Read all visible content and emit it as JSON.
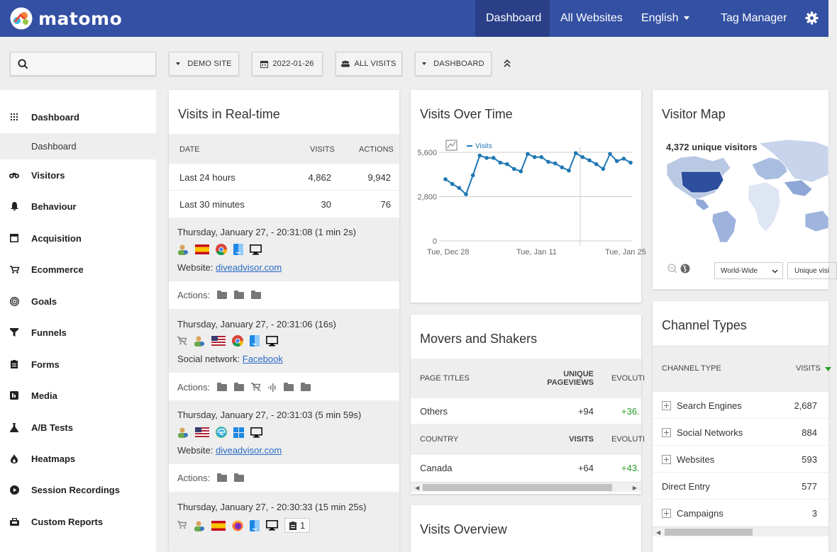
{
  "header": {
    "logo_text": "matomo",
    "nav": [
      {
        "label": "Dashboard"
      },
      {
        "label": "All Websites"
      },
      {
        "label": "English"
      },
      {
        "label": "Tag Manager"
      }
    ]
  },
  "controls": {
    "search_placeholder": "",
    "site": "DEMO SITE",
    "date": "2022-01-26",
    "segment": "ALL VISITS",
    "dashboard": "DASHBOARD"
  },
  "sidebar": {
    "items": [
      {
        "label": "Dashboard",
        "icon": "grid-icon"
      },
      {
        "label": "Visitors",
        "icon": "binoculars-icon"
      },
      {
        "label": "Behaviour",
        "icon": "bell-icon"
      },
      {
        "label": "Acquisition",
        "icon": "acquisition-icon"
      },
      {
        "label": "Ecommerce",
        "icon": "cart-icon"
      },
      {
        "label": "Goals",
        "icon": "target-icon"
      },
      {
        "label": "Funnels",
        "icon": "funnel-icon"
      },
      {
        "label": "Forms",
        "icon": "form-icon"
      },
      {
        "label": "Media",
        "icon": "media-icon"
      },
      {
        "label": "A/B Tests",
        "icon": "flask-icon"
      },
      {
        "label": "Heatmaps",
        "icon": "flame-icon"
      },
      {
        "label": "Session Recordings",
        "icon": "play-icon"
      },
      {
        "label": "Custom Reports",
        "icon": "report-icon"
      }
    ],
    "subitem": "Dashboard"
  },
  "realtime": {
    "title": "Visits in Real-time",
    "columns": [
      "DATE",
      "VISITS",
      "ACTIONS"
    ],
    "rows": [
      {
        "label": "Last 24 hours",
        "visits": "4,862",
        "actions": "9,942"
      },
      {
        "label": "Last 30 minutes",
        "visits": "30",
        "actions": "76"
      }
    ],
    "visits": [
      {
        "time": "Thursday, January 27, - 20:31:08 (1 min 2s)",
        "ref_label": "Website:",
        "ref_link": "diveadvisor.com",
        "actions_label": "Actions:"
      },
      {
        "time": "Thursday, January 27, - 20:31:06 (16s)",
        "ref_label": "Social network:",
        "ref_link": "Facebook",
        "actions_label": "Actions:"
      },
      {
        "time": "Thursday, January 27, - 20:31:03 (5 min 59s)",
        "ref_label": "Website:",
        "ref_link": "diveadvisor.com",
        "actions_label": "Actions:"
      },
      {
        "time": "Thursday, January 27, - 20:30:33 (15 min 25s)",
        "badge": "1"
      }
    ]
  },
  "visits_over_time": {
    "title": "Visits Over Time",
    "legend": "Visits",
    "yticks": [
      "5,600",
      "2,800",
      "0"
    ],
    "xticks": [
      "Tue, Dec 28",
      "Tue, Jan 11",
      "Tue, Jan 25"
    ]
  },
  "chart_data": {
    "type": "line",
    "title": "Visits Over Time",
    "series": [
      {
        "name": "Visits",
        "values": [
          3900,
          3600,
          3350,
          2950,
          4150,
          5400,
          5250,
          5250,
          4950,
          4850,
          4550,
          4400,
          5500,
          5300,
          5300,
          5000,
          4900,
          4650,
          4450,
          5550,
          5300,
          5100,
          4850,
          4550,
          5500,
          5050,
          5200,
          4950
        ]
      }
    ],
    "x_start": "2021-12-29",
    "xticks": [
      "Tue, Dec 28",
      "Tue, Jan 11",
      "Tue, Jan 25"
    ],
    "ylim": [
      0,
      5600
    ],
    "yticks": [
      0,
      2800,
      5600
    ],
    "grid": true,
    "legend_position": "top-left",
    "color": "#1f78b4"
  },
  "movers": {
    "title": "Movers and Shakers",
    "col1": "PAGE TITLES",
    "col2": "UNIQUE PAGEVIEWS",
    "col3": "EVOLUTI",
    "row1": {
      "label": "Others",
      "value": "+94",
      "evo": "+36."
    },
    "col1b": "COUNTRY",
    "col2b": "VISITS",
    "col3b": "EVOLUTI",
    "row2": {
      "label": "Canada",
      "value": "+64",
      "evo": "+43."
    }
  },
  "visits_overview": {
    "title": "Visits Overview"
  },
  "visitor_map": {
    "title": "Visitor Map",
    "unique": "4,372 unique visitors",
    "region": "World-Wide",
    "metric": "Unique visi"
  },
  "channel_types": {
    "title": "Channel Types",
    "col1": "CHANNEL TYPE",
    "col2": "VISITS",
    "rows": [
      {
        "label": "Search Engines",
        "value": "2,687",
        "expandable": true
      },
      {
        "label": "Social Networks",
        "value": "884",
        "expandable": true
      },
      {
        "label": "Websites",
        "value": "593",
        "expandable": true
      },
      {
        "label": "Direct Entry",
        "value": "577",
        "expandable": false
      },
      {
        "label": "Campaigns",
        "value": "3",
        "expandable": true
      }
    ]
  },
  "colors": {
    "header": "#3450a3",
    "header_active": "#2a3f87",
    "link": "#2b6bc4",
    "line": "#1f78b4",
    "positive": "#2a9d2a"
  }
}
